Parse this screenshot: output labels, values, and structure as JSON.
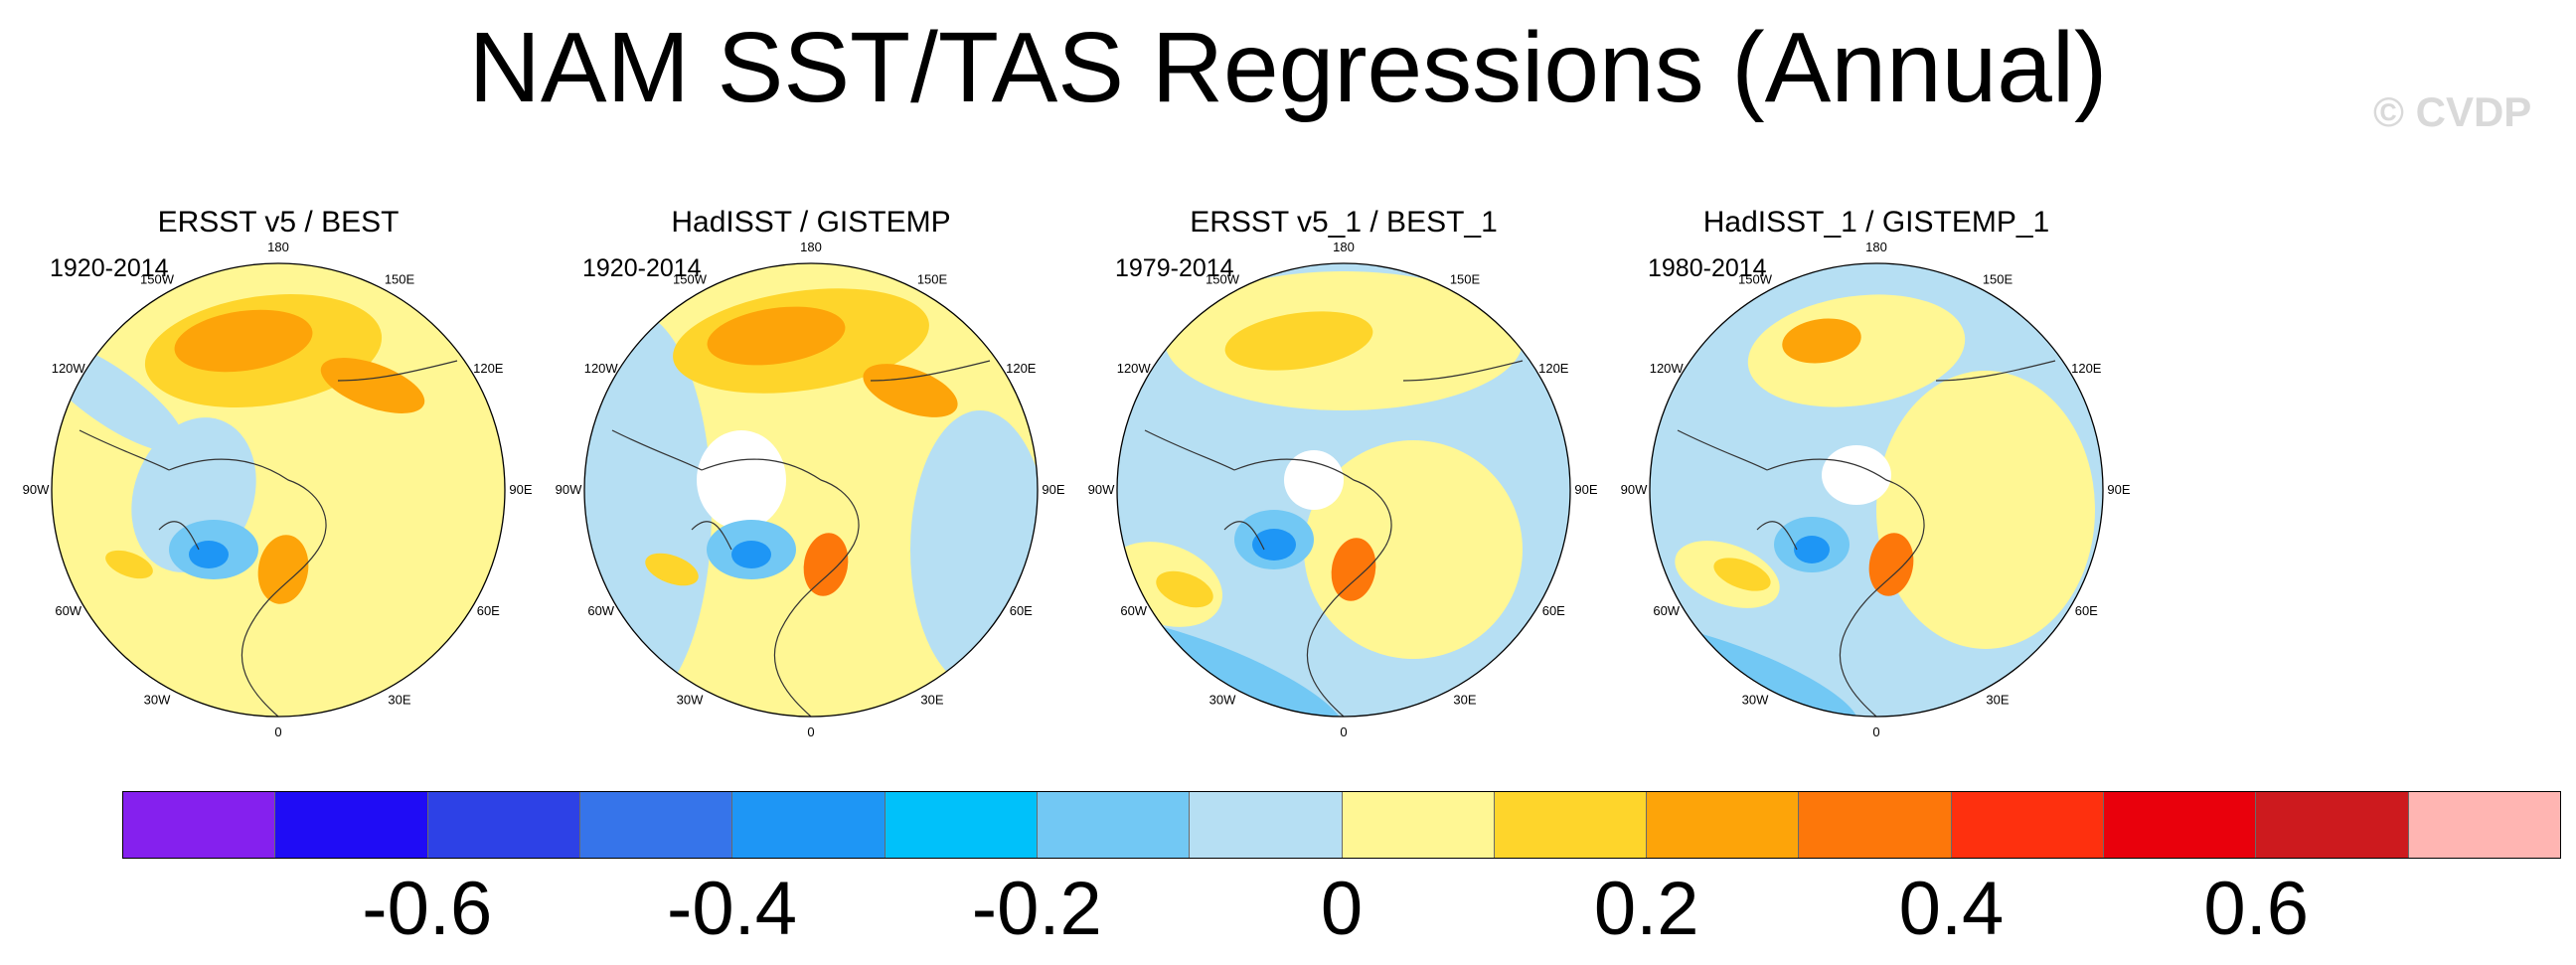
{
  "title": "NAM SST/TAS Regressions (Annual)",
  "watermark": "© CVDP",
  "panels": [
    {
      "label": "ERSST v5 / BEST",
      "period": "1920-2014",
      "variant": 0
    },
    {
      "label": "HadISST / GISTEMP",
      "period": "1920-2014",
      "variant": 1
    },
    {
      "label": "ERSST v5_1 / BEST_1",
      "period": "1979-2014",
      "variant": 2
    },
    {
      "label": "HadISST_1 / GISTEMP_1",
      "period": "1980-2014",
      "variant": 3
    }
  ],
  "longitude_labels": [
    "180",
    "150E",
    "120E",
    "90E",
    "60E",
    "30E",
    "0",
    "30W",
    "60W",
    "90W",
    "120W",
    "150W"
  ],
  "colorbar": {
    "colors": [
      "#8520ee",
      "#1f0cf5",
      "#2d41e6",
      "#3674ea",
      "#1e96f5",
      "#00c1fa",
      "#72c8f4",
      "#b6dff3",
      "#fff794",
      "#fed52b",
      "#fda409",
      "#fd770a",
      "#fe300e",
      "#e9000c",
      "#cd1a1e",
      "#ffb5b2"
    ],
    "ticks": [
      "-0.6",
      "-0.4",
      "-0.2",
      "0",
      "0.2",
      "0.4",
      "0.6"
    ],
    "tick_values": [
      -0.6,
      -0.4,
      -0.2,
      0,
      0.2,
      0.4,
      0.6
    ],
    "range": [
      -0.8,
      0.8
    ]
  }
}
